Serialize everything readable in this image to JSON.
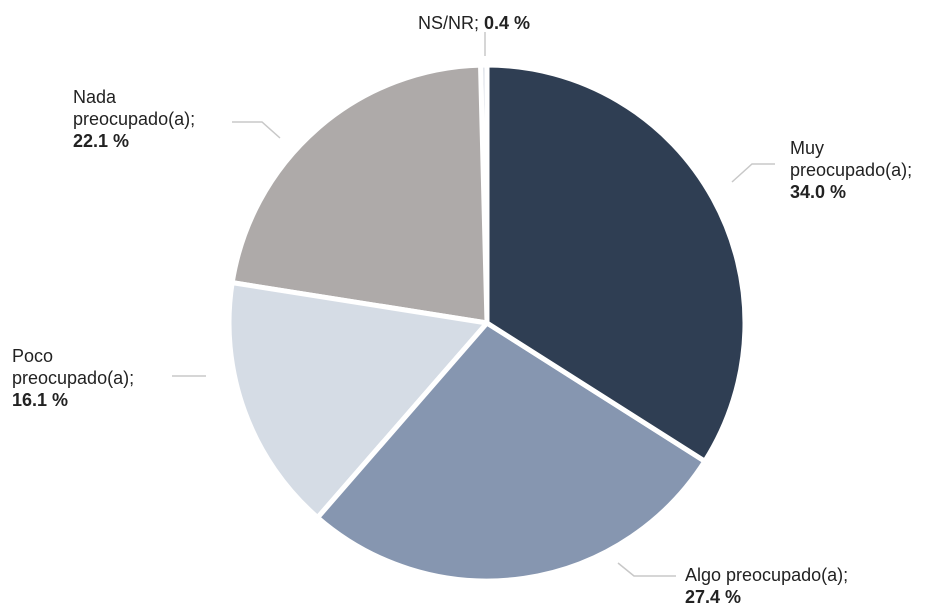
{
  "chart_data": {
    "type": "pie",
    "categories": [
      "Muy preocupado(a);",
      "Algo preocupado(a);",
      "Poco preocupado(a);",
      "Nada preocupado(a);",
      "NS/NR;"
    ],
    "values": [
      34.0,
      27.4,
      16.1,
      22.1,
      0.4
    ],
    "value_labels": [
      "34.0 %",
      "27.4 %",
      "16.1 %",
      "22.1 %",
      "0.4 %"
    ],
    "colors": [
      "#2f3e53",
      "#8696b0",
      "#d5dce5",
      "#aeaaa9",
      "#d9dee6"
    ]
  }
}
